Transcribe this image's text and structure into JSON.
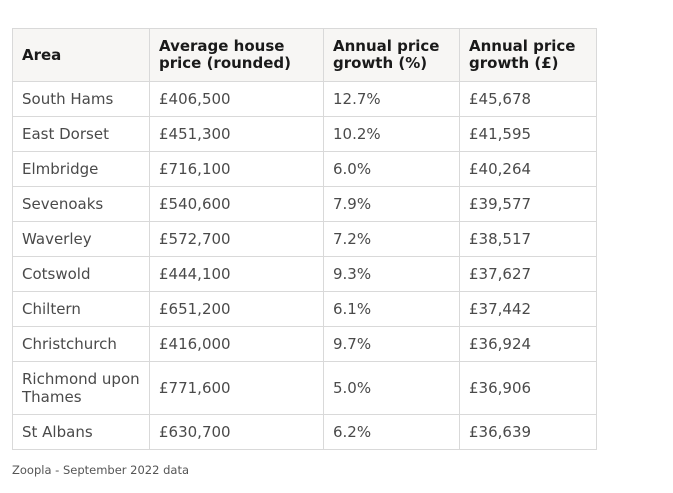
{
  "table": {
    "headers": [
      "Area",
      "Average house price (rounded)",
      "Annual price growth (%)",
      "Annual price growth (£)"
    ],
    "rows": [
      [
        "South Hams",
        "£406,500",
        "12.7%",
        "£45,678"
      ],
      [
        "East Dorset",
        "£451,300",
        "10.2%",
        "£41,595"
      ],
      [
        "Elmbridge",
        "£716,100",
        "6.0%",
        "£40,264"
      ],
      [
        "Sevenoaks",
        "£540,600",
        "7.9%",
        "£39,577"
      ],
      [
        "Waverley",
        "£572,700",
        "7.2%",
        "£38,517"
      ],
      [
        "Cotswold",
        "£444,100",
        "9.3%",
        "£37,627"
      ],
      [
        "Chiltern",
        "£651,200",
        "6.1%",
        "£37,442"
      ],
      [
        "Christchurch",
        "£416,000",
        "9.7%",
        "£36,924"
      ],
      [
        "Richmond upon Thames",
        "£771,600",
        "5.0%",
        "£36,906"
      ],
      [
        "St Albans",
        "£630,700",
        "6.2%",
        "£36,639"
      ]
    ]
  },
  "caption": "Zoopla - September 2022 data",
  "colors": {
    "header_bg": "#f7f6f4",
    "border": "#d9d9d9",
    "text": "#4a4a4a"
  }
}
